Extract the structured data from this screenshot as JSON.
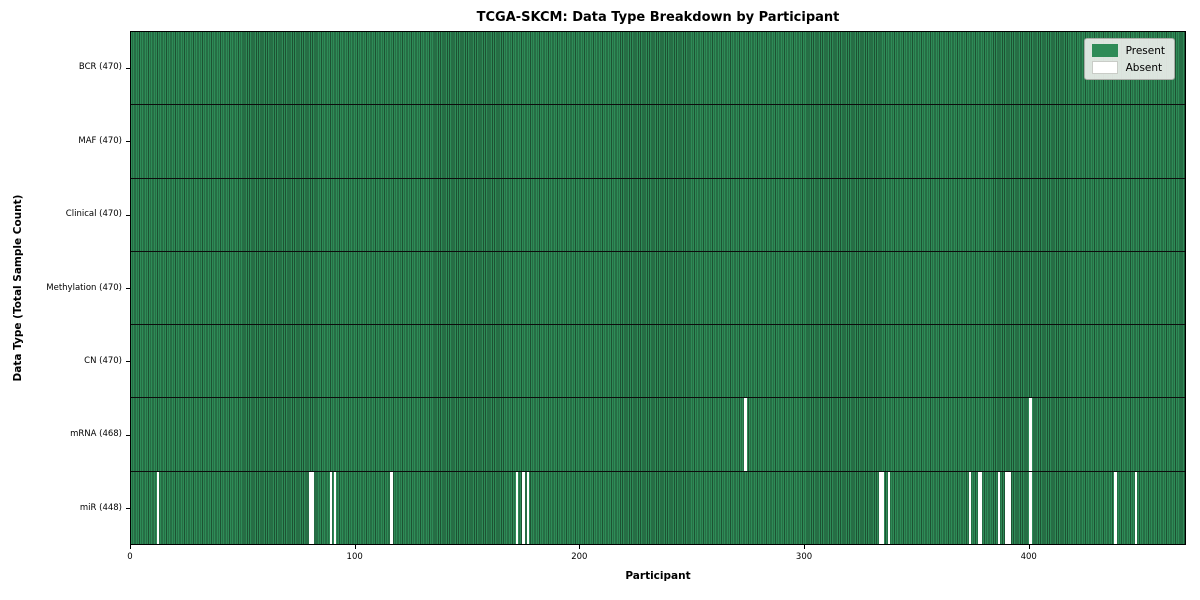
{
  "title": "TCGA-SKCM: Data Type Breakdown by Participant",
  "xlabel": "Participant",
  "ylabel": "Data Type (Total Sample Count)",
  "legend": {
    "present_label": "Present",
    "absent_label": "Absent"
  },
  "colors": {
    "present": "#2e8b57",
    "absent": "#ffffff",
    "edge_stripe": "#1d5233",
    "legend_bg": "#eceeea"
  },
  "chart_data": {
    "type": "heatmap",
    "title": "TCGA-SKCM: Data Type Breakdown by Participant",
    "xlabel": "Participant",
    "ylabel": "Data Type (Total Sample Count)",
    "n_participants": 470,
    "x_ticks": [
      0,
      100,
      200,
      300,
      400
    ],
    "legend_entries": [
      "Present",
      "Absent"
    ],
    "legend_position": "upper right",
    "rows": [
      {
        "key": "bcr",
        "label": "BCR (470)",
        "data_type": "BCR",
        "present_count": 470,
        "absent_participants": []
      },
      {
        "key": "maf",
        "label": "MAF (470)",
        "data_type": "MAF",
        "present_count": 470,
        "absent_participants": []
      },
      {
        "key": "clinical",
        "label": "Clinical (470)",
        "data_type": "Clinical",
        "present_count": 470,
        "absent_participants": []
      },
      {
        "key": "methylation",
        "label": "Methylation (470)",
        "data_type": "Methylation",
        "present_count": 470,
        "absent_participants": []
      },
      {
        "key": "cn",
        "label": "CN (470)",
        "data_type": "CN",
        "present_count": 470,
        "absent_participants": []
      },
      {
        "key": "mrna",
        "label": "mRNA (468)",
        "data_type": "mRNA",
        "present_count": 468,
        "absent_participants": [
          274,
          401
        ]
      },
      {
        "key": "mir",
        "label": "miR (448)",
        "data_type": "miR",
        "present_count": 448,
        "absent_participants": [
          12,
          80,
          81,
          89,
          91,
          116,
          172,
          175,
          177,
          334,
          335,
          338,
          374,
          378,
          379,
          387,
          390,
          391,
          392,
          401,
          439,
          448
        ]
      }
    ]
  }
}
